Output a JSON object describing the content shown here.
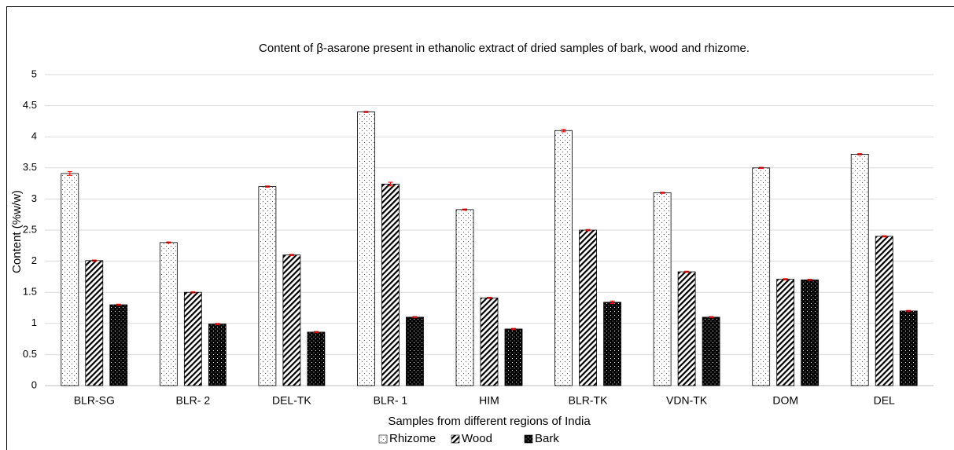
{
  "chart_data": {
    "type": "bar",
    "title": "Content of β-asarone present in ethanolic extract of dried samples of bark, wood and rhizome.",
    "xlabel": "Samples from different regions of India",
    "ylabel": "Content (%w/w)",
    "categories": [
      "BLR-SG",
      "BLR- 2",
      "DEL-TK",
      "BLR- 1",
      "HIM",
      "BLR-TK",
      "VDN-TK",
      "DOM",
      "DEL"
    ],
    "series": [
      {
        "name": "Rhizome",
        "color": "#ffffff",
        "values": [
          3.41,
          2.3,
          3.2,
          4.4,
          2.83,
          4.1,
          3.1,
          3.5,
          3.72
        ],
        "errors": [
          0.03,
          0.01,
          0.01,
          0.01,
          0.01,
          0.02,
          0.01,
          0.01,
          0.01
        ]
      },
      {
        "name": "Wood",
        "color": "#ffffff",
        "values": [
          2.01,
          1.5,
          2.1,
          3.24,
          1.41,
          2.5,
          1.83,
          1.71,
          2.4
        ],
        "errors": [
          0.01,
          0.01,
          0.01,
          0.03,
          0.01,
          0.01,
          0.01,
          0.01,
          0.01
        ]
      },
      {
        "name": "Bark",
        "color": "#000000",
        "values": [
          1.3,
          0.99,
          0.86,
          1.1,
          0.91,
          1.34,
          1.1,
          1.7,
          1.2
        ],
        "errors": [
          0.01,
          0.01,
          0.01,
          0.01,
          0.01,
          0.02,
          0.01,
          0.01,
          0.01
        ]
      }
    ],
    "error_color": "#ff0000",
    "ylim": [
      0,
      5
    ],
    "yticks": [
      0,
      0.5,
      1,
      1.5,
      2,
      2.5,
      3,
      3.5,
      4,
      4.5,
      5
    ],
    "grid": true,
    "legend": "bottom"
  }
}
